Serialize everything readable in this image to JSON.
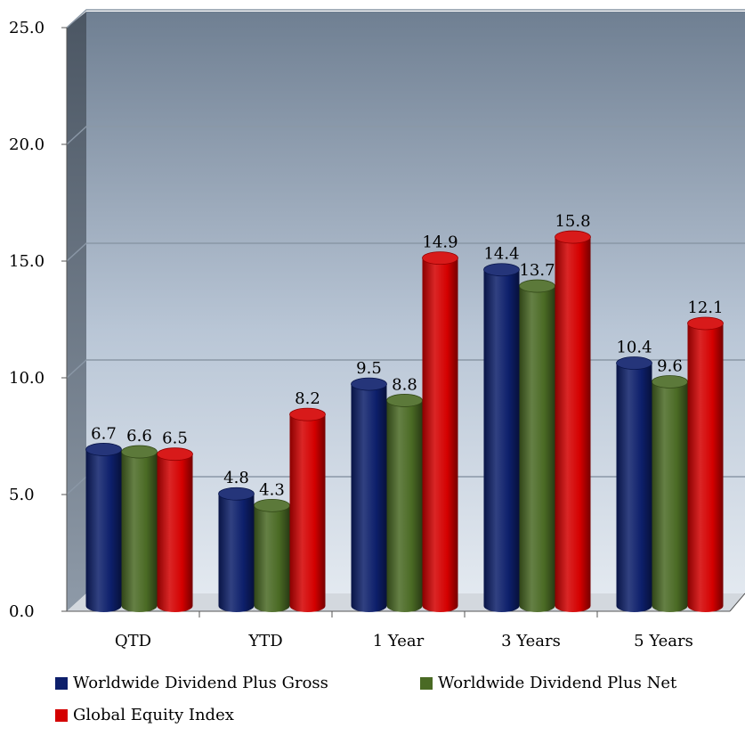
{
  "chart_data": {
    "type": "bar",
    "title": "",
    "xlabel": "",
    "ylabel": "",
    "ylim": [
      0,
      25
    ],
    "yticks": [
      "0.0",
      "5.0",
      "10.0",
      "15.0",
      "20.0",
      "25.0"
    ],
    "categories": [
      "QTD",
      "YTD",
      "1 Year",
      "3 Years",
      "5 Years"
    ],
    "series": [
      {
        "name": "Worldwide Dividend Plus Gross",
        "color": "#0d1f6b",
        "values": [
          6.7,
          4.8,
          9.5,
          14.4,
          10.4
        ],
        "labels": [
          "6.7",
          "4.8",
          "9.5",
          "14.4",
          "10.4"
        ]
      },
      {
        "name": "Worldwide Dividend Plus Net",
        "color": "#4a6a24",
        "values": [
          6.6,
          4.3,
          8.8,
          13.7,
          9.6
        ],
        "labels": [
          "6.6",
          "4.3",
          "8.8",
          "13.7",
          "9.6"
        ]
      },
      {
        "name": "Global Equity Index",
        "color": "#d40000",
        "values": [
          6.5,
          8.2,
          14.9,
          15.8,
          12.1
        ],
        "labels": [
          "6.5",
          "8.2",
          "14.9",
          "15.8",
          "12.1"
        ]
      }
    ],
    "grid": true,
    "legend_position": "bottom",
    "style": "3d-cylinder"
  }
}
